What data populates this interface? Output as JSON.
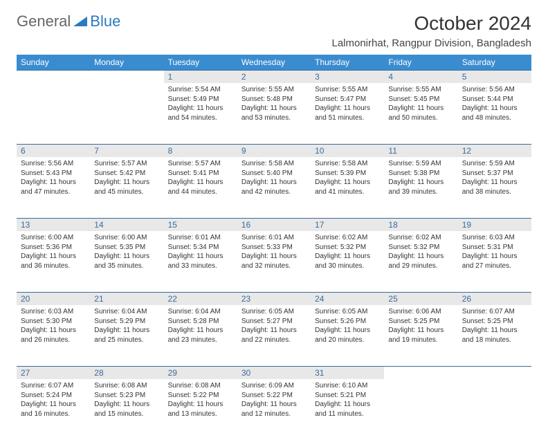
{
  "brand": {
    "part1": "General",
    "part2": "Blue"
  },
  "title": "October 2024",
  "location": "Lalmonirhat, Rangpur Division, Bangladesh",
  "colors": {
    "header_bg": "#3a8cd0",
    "header_text": "#ffffff",
    "daynum_bg": "#e8e8e8",
    "daynum_text": "#3a6a9a",
    "border": "#3a6a9a",
    "body_text": "#333333"
  },
  "weekdays": [
    "Sunday",
    "Monday",
    "Tuesday",
    "Wednesday",
    "Thursday",
    "Friday",
    "Saturday"
  ],
  "weeks": [
    [
      null,
      null,
      {
        "n": "1",
        "sr": "Sunrise: 5:54 AM",
        "ss": "Sunset: 5:49 PM",
        "dl": "Daylight: 11 hours and 54 minutes."
      },
      {
        "n": "2",
        "sr": "Sunrise: 5:55 AM",
        "ss": "Sunset: 5:48 PM",
        "dl": "Daylight: 11 hours and 53 minutes."
      },
      {
        "n": "3",
        "sr": "Sunrise: 5:55 AM",
        "ss": "Sunset: 5:47 PM",
        "dl": "Daylight: 11 hours and 51 minutes."
      },
      {
        "n": "4",
        "sr": "Sunrise: 5:55 AM",
        "ss": "Sunset: 5:45 PM",
        "dl": "Daylight: 11 hours and 50 minutes."
      },
      {
        "n": "5",
        "sr": "Sunrise: 5:56 AM",
        "ss": "Sunset: 5:44 PM",
        "dl": "Daylight: 11 hours and 48 minutes."
      }
    ],
    [
      {
        "n": "6",
        "sr": "Sunrise: 5:56 AM",
        "ss": "Sunset: 5:43 PM",
        "dl": "Daylight: 11 hours and 47 minutes."
      },
      {
        "n": "7",
        "sr": "Sunrise: 5:57 AM",
        "ss": "Sunset: 5:42 PM",
        "dl": "Daylight: 11 hours and 45 minutes."
      },
      {
        "n": "8",
        "sr": "Sunrise: 5:57 AM",
        "ss": "Sunset: 5:41 PM",
        "dl": "Daylight: 11 hours and 44 minutes."
      },
      {
        "n": "9",
        "sr": "Sunrise: 5:58 AM",
        "ss": "Sunset: 5:40 PM",
        "dl": "Daylight: 11 hours and 42 minutes."
      },
      {
        "n": "10",
        "sr": "Sunrise: 5:58 AM",
        "ss": "Sunset: 5:39 PM",
        "dl": "Daylight: 11 hours and 41 minutes."
      },
      {
        "n": "11",
        "sr": "Sunrise: 5:59 AM",
        "ss": "Sunset: 5:38 PM",
        "dl": "Daylight: 11 hours and 39 minutes."
      },
      {
        "n": "12",
        "sr": "Sunrise: 5:59 AM",
        "ss": "Sunset: 5:37 PM",
        "dl": "Daylight: 11 hours and 38 minutes."
      }
    ],
    [
      {
        "n": "13",
        "sr": "Sunrise: 6:00 AM",
        "ss": "Sunset: 5:36 PM",
        "dl": "Daylight: 11 hours and 36 minutes."
      },
      {
        "n": "14",
        "sr": "Sunrise: 6:00 AM",
        "ss": "Sunset: 5:35 PM",
        "dl": "Daylight: 11 hours and 35 minutes."
      },
      {
        "n": "15",
        "sr": "Sunrise: 6:01 AM",
        "ss": "Sunset: 5:34 PM",
        "dl": "Daylight: 11 hours and 33 minutes."
      },
      {
        "n": "16",
        "sr": "Sunrise: 6:01 AM",
        "ss": "Sunset: 5:33 PM",
        "dl": "Daylight: 11 hours and 32 minutes."
      },
      {
        "n": "17",
        "sr": "Sunrise: 6:02 AM",
        "ss": "Sunset: 5:32 PM",
        "dl": "Daylight: 11 hours and 30 minutes."
      },
      {
        "n": "18",
        "sr": "Sunrise: 6:02 AM",
        "ss": "Sunset: 5:32 PM",
        "dl": "Daylight: 11 hours and 29 minutes."
      },
      {
        "n": "19",
        "sr": "Sunrise: 6:03 AM",
        "ss": "Sunset: 5:31 PM",
        "dl": "Daylight: 11 hours and 27 minutes."
      }
    ],
    [
      {
        "n": "20",
        "sr": "Sunrise: 6:03 AM",
        "ss": "Sunset: 5:30 PM",
        "dl": "Daylight: 11 hours and 26 minutes."
      },
      {
        "n": "21",
        "sr": "Sunrise: 6:04 AM",
        "ss": "Sunset: 5:29 PM",
        "dl": "Daylight: 11 hours and 25 minutes."
      },
      {
        "n": "22",
        "sr": "Sunrise: 6:04 AM",
        "ss": "Sunset: 5:28 PM",
        "dl": "Daylight: 11 hours and 23 minutes."
      },
      {
        "n": "23",
        "sr": "Sunrise: 6:05 AM",
        "ss": "Sunset: 5:27 PM",
        "dl": "Daylight: 11 hours and 22 minutes."
      },
      {
        "n": "24",
        "sr": "Sunrise: 6:05 AM",
        "ss": "Sunset: 5:26 PM",
        "dl": "Daylight: 11 hours and 20 minutes."
      },
      {
        "n": "25",
        "sr": "Sunrise: 6:06 AM",
        "ss": "Sunset: 5:25 PM",
        "dl": "Daylight: 11 hours and 19 minutes."
      },
      {
        "n": "26",
        "sr": "Sunrise: 6:07 AM",
        "ss": "Sunset: 5:25 PM",
        "dl": "Daylight: 11 hours and 18 minutes."
      }
    ],
    [
      {
        "n": "27",
        "sr": "Sunrise: 6:07 AM",
        "ss": "Sunset: 5:24 PM",
        "dl": "Daylight: 11 hours and 16 minutes."
      },
      {
        "n": "28",
        "sr": "Sunrise: 6:08 AM",
        "ss": "Sunset: 5:23 PM",
        "dl": "Daylight: 11 hours and 15 minutes."
      },
      {
        "n": "29",
        "sr": "Sunrise: 6:08 AM",
        "ss": "Sunset: 5:22 PM",
        "dl": "Daylight: 11 hours and 13 minutes."
      },
      {
        "n": "30",
        "sr": "Sunrise: 6:09 AM",
        "ss": "Sunset: 5:22 PM",
        "dl": "Daylight: 11 hours and 12 minutes."
      },
      {
        "n": "31",
        "sr": "Sunrise: 6:10 AM",
        "ss": "Sunset: 5:21 PM",
        "dl": "Daylight: 11 hours and 11 minutes."
      },
      null,
      null
    ]
  ]
}
